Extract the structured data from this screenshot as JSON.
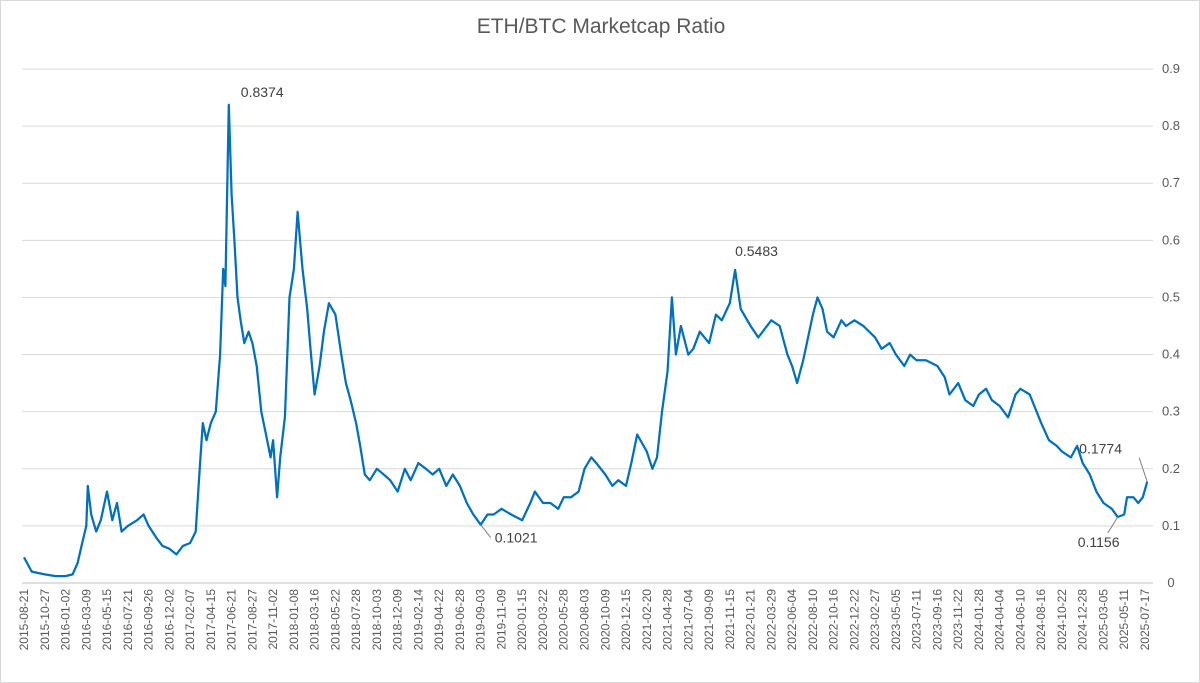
{
  "chart_data": {
    "type": "line",
    "title": "ETH/BTC Marketcap Ratio",
    "xlabel": "",
    "ylabel": "",
    "ylim": [
      0,
      0.9
    ],
    "y_ticks": [
      "0",
      "0.1",
      "0.2",
      "0.3",
      "0.4",
      "0.5",
      "0.6",
      "0.7",
      "0.8",
      "0.9"
    ],
    "y_axis_position": "right",
    "grid": "horizontal",
    "legend": "none",
    "x_tick_labels": [
      "2015-08-21",
      "2015-10-27",
      "2016-01-02",
      "2016-03-09",
      "2016-05-15",
      "2016-07-21",
      "2016-09-26",
      "2016-12-02",
      "2017-02-07",
      "2017-04-15",
      "2017-06-21",
      "2017-08-27",
      "2017-11-02",
      "2018-01-08",
      "2018-03-16",
      "2018-05-22",
      "2018-07-28",
      "2018-10-03",
      "2018-12-09",
      "2019-02-14",
      "2019-04-22",
      "2019-06-28",
      "2019-09-03",
      "2019-11-09",
      "2020-01-15",
      "2020-03-22",
      "2020-05-28",
      "2020-08-03",
      "2020-10-09",
      "2020-12-15",
      "2021-02-20",
      "2021-04-28",
      "2021-07-04",
      "2021-09-09",
      "2021-11-15",
      "2022-01-21",
      "2022-03-29",
      "2022-06-04",
      "2022-08-10",
      "2022-10-16",
      "2022-12-22",
      "2023-02-27",
      "2023-05-05",
      "2023-07-11",
      "2023-09-16",
      "2023-11-22",
      "2024-01-28",
      "2024-04-04",
      "2024-06-10",
      "2024-08-16",
      "2024-10-22",
      "2024-12-28",
      "2025-03-05",
      "2025-05-11",
      "2025-07-17"
    ],
    "series": [
      {
        "color": "#0070c0",
        "points": [
          {
            "x": "2015-08-21",
            "y": 0.045
          },
          {
            "x": "2015-09-15",
            "y": 0.02
          },
          {
            "x": "2015-10-27",
            "y": 0.015
          },
          {
            "x": "2015-12-01",
            "y": 0.012
          },
          {
            "x": "2016-01-02",
            "y": 0.012
          },
          {
            "x": "2016-01-25",
            "y": 0.015
          },
          {
            "x": "2016-02-10",
            "y": 0.035
          },
          {
            "x": "2016-02-25",
            "y": 0.07
          },
          {
            "x": "2016-03-09",
            "y": 0.1
          },
          {
            "x": "2016-03-14",
            "y": 0.17
          },
          {
            "x": "2016-03-25",
            "y": 0.12
          },
          {
            "x": "2016-04-10",
            "y": 0.09
          },
          {
            "x": "2016-04-25",
            "y": 0.11
          },
          {
            "x": "2016-05-15",
            "y": 0.16
          },
          {
            "x": "2016-06-01",
            "y": 0.11
          },
          {
            "x": "2016-06-16",
            "y": 0.14
          },
          {
            "x": "2016-07-01",
            "y": 0.09
          },
          {
            "x": "2016-07-21",
            "y": 0.1
          },
          {
            "x": "2016-08-20",
            "y": 0.11
          },
          {
            "x": "2016-09-10",
            "y": 0.12
          },
          {
            "x": "2016-09-26",
            "y": 0.1
          },
          {
            "x": "2016-10-20",
            "y": 0.08
          },
          {
            "x": "2016-11-10",
            "y": 0.065
          },
          {
            "x": "2016-12-02",
            "y": 0.06
          },
          {
            "x": "2016-12-25",
            "y": 0.05
          },
          {
            "x": "2017-01-15",
            "y": 0.065
          },
          {
            "x": "2017-02-07",
            "y": 0.07
          },
          {
            "x": "2017-02-25",
            "y": 0.09
          },
          {
            "x": "2017-03-10",
            "y": 0.2
          },
          {
            "x": "2017-03-20",
            "y": 0.28
          },
          {
            "x": "2017-04-01",
            "y": 0.25
          },
          {
            "x": "2017-04-15",
            "y": 0.28
          },
          {
            "x": "2017-05-01",
            "y": 0.3
          },
          {
            "x": "2017-05-15",
            "y": 0.4
          },
          {
            "x": "2017-05-25",
            "y": 0.55
          },
          {
            "x": "2017-06-01",
            "y": 0.52
          },
          {
            "x": "2017-06-12",
            "y": 0.8374
          },
          {
            "x": "2017-06-21",
            "y": 0.68
          },
          {
            "x": "2017-06-30",
            "y": 0.6
          },
          {
            "x": "2017-07-10",
            "y": 0.5
          },
          {
            "x": "2017-07-20",
            "y": 0.46
          },
          {
            "x": "2017-08-01",
            "y": 0.42
          },
          {
            "x": "2017-08-15",
            "y": 0.44
          },
          {
            "x": "2017-08-27",
            "y": 0.42
          },
          {
            "x": "2017-09-10",
            "y": 0.38
          },
          {
            "x": "2017-09-25",
            "y": 0.3
          },
          {
            "x": "2017-10-10",
            "y": 0.26
          },
          {
            "x": "2017-10-25",
            "y": 0.22
          },
          {
            "x": "2017-11-02",
            "y": 0.25
          },
          {
            "x": "2017-11-15",
            "y": 0.15
          },
          {
            "x": "2017-11-25",
            "y": 0.22
          },
          {
            "x": "2017-12-10",
            "y": 0.29
          },
          {
            "x": "2017-12-25",
            "y": 0.5
          },
          {
            "x": "2018-01-08",
            "y": 0.55
          },
          {
            "x": "2018-01-20",
            "y": 0.65
          },
          {
            "x": "2018-02-05",
            "y": 0.55
          },
          {
            "x": "2018-02-20",
            "y": 0.48
          },
          {
            "x": "2018-03-01",
            "y": 0.42
          },
          {
            "x": "2018-03-16",
            "y": 0.33
          },
          {
            "x": "2018-04-01",
            "y": 0.38
          },
          {
            "x": "2018-04-15",
            "y": 0.44
          },
          {
            "x": "2018-05-01",
            "y": 0.49
          },
          {
            "x": "2018-05-22",
            "y": 0.47
          },
          {
            "x": "2018-06-10",
            "y": 0.4
          },
          {
            "x": "2018-06-25",
            "y": 0.35
          },
          {
            "x": "2018-07-10",
            "y": 0.32
          },
          {
            "x": "2018-07-28",
            "y": 0.28
          },
          {
            "x": "2018-08-10",
            "y": 0.24
          },
          {
            "x": "2018-08-25",
            "y": 0.19
          },
          {
            "x": "2018-09-10",
            "y": 0.18
          },
          {
            "x": "2018-10-03",
            "y": 0.2
          },
          {
            "x": "2018-10-25",
            "y": 0.19
          },
          {
            "x": "2018-11-15",
            "y": 0.18
          },
          {
            "x": "2018-12-09",
            "y": 0.16
          },
          {
            "x": "2019-01-01",
            "y": 0.2
          },
          {
            "x": "2019-01-20",
            "y": 0.18
          },
          {
            "x": "2019-02-14",
            "y": 0.21
          },
          {
            "x": "2019-03-10",
            "y": 0.2
          },
          {
            "x": "2019-04-01",
            "y": 0.19
          },
          {
            "x": "2019-04-22",
            "y": 0.2
          },
          {
            "x": "2019-05-15",
            "y": 0.17
          },
          {
            "x": "2019-06-05",
            "y": 0.19
          },
          {
            "x": "2019-06-28",
            "y": 0.17
          },
          {
            "x": "2019-07-20",
            "y": 0.14
          },
          {
            "x": "2019-08-10",
            "y": 0.12
          },
          {
            "x": "2019-09-03",
            "y": 0.1021
          },
          {
            "x": "2019-09-25",
            "y": 0.12
          },
          {
            "x": "2019-10-15",
            "y": 0.12
          },
          {
            "x": "2019-11-09",
            "y": 0.13
          },
          {
            "x": "2019-12-10",
            "y": 0.12
          },
          {
            "x": "2020-01-15",
            "y": 0.11
          },
          {
            "x": "2020-02-10",
            "y": 0.14
          },
          {
            "x": "2020-02-25",
            "y": 0.16
          },
          {
            "x": "2020-03-22",
            "y": 0.14
          },
          {
            "x": "2020-04-15",
            "y": 0.14
          },
          {
            "x": "2020-05-10",
            "y": 0.13
          },
          {
            "x": "2020-05-28",
            "y": 0.15
          },
          {
            "x": "2020-06-20",
            "y": 0.15
          },
          {
            "x": "2020-07-15",
            "y": 0.16
          },
          {
            "x": "2020-08-03",
            "y": 0.2
          },
          {
            "x": "2020-08-25",
            "y": 0.22
          },
          {
            "x": "2020-09-10",
            "y": 0.21
          },
          {
            "x": "2020-10-09",
            "y": 0.19
          },
          {
            "x": "2020-11-01",
            "y": 0.17
          },
          {
            "x": "2020-11-20",
            "y": 0.18
          },
          {
            "x": "2020-12-15",
            "y": 0.17
          },
          {
            "x": "2021-01-01",
            "y": 0.21
          },
          {
            "x": "2021-01-20",
            "y": 0.26
          },
          {
            "x": "2021-02-20",
            "y": 0.23
          },
          {
            "x": "2021-03-10",
            "y": 0.2
          },
          {
            "x": "2021-03-25",
            "y": 0.22
          },
          {
            "x": "2021-04-10",
            "y": 0.3
          },
          {
            "x": "2021-04-28",
            "y": 0.37
          },
          {
            "x": "2021-05-12",
            "y": 0.5
          },
          {
            "x": "2021-05-25",
            "y": 0.4
          },
          {
            "x": "2021-06-10",
            "y": 0.45
          },
          {
            "x": "2021-07-04",
            "y": 0.4
          },
          {
            "x": "2021-07-20",
            "y": 0.41
          },
          {
            "x": "2021-08-10",
            "y": 0.44
          },
          {
            "x": "2021-09-09",
            "y": 0.42
          },
          {
            "x": "2021-10-01",
            "y": 0.47
          },
          {
            "x": "2021-10-20",
            "y": 0.46
          },
          {
            "x": "2021-11-15",
            "y": 0.49
          },
          {
            "x": "2021-12-02",
            "y": 0.5483
          },
          {
            "x": "2021-12-20",
            "y": 0.48
          },
          {
            "x": "2022-01-21",
            "y": 0.45
          },
          {
            "x": "2022-02-15",
            "y": 0.43
          },
          {
            "x": "2022-03-29",
            "y": 0.46
          },
          {
            "x": "2022-04-25",
            "y": 0.45
          },
          {
            "x": "2022-05-20",
            "y": 0.4
          },
          {
            "x": "2022-06-04",
            "y": 0.38
          },
          {
            "x": "2022-06-20",
            "y": 0.35
          },
          {
            "x": "2022-07-10",
            "y": 0.39
          },
          {
            "x": "2022-08-10",
            "y": 0.47
          },
          {
            "x": "2022-08-25",
            "y": 0.5
          },
          {
            "x": "2022-09-10",
            "y": 0.48
          },
          {
            "x": "2022-09-25",
            "y": 0.44
          },
          {
            "x": "2022-10-16",
            "y": 0.43
          },
          {
            "x": "2022-11-10",
            "y": 0.46
          },
          {
            "x": "2022-11-25",
            "y": 0.45
          },
          {
            "x": "2022-12-22",
            "y": 0.46
          },
          {
            "x": "2023-01-20",
            "y": 0.45
          },
          {
            "x": "2023-02-27",
            "y": 0.43
          },
          {
            "x": "2023-03-20",
            "y": 0.41
          },
          {
            "x": "2023-04-15",
            "y": 0.42
          },
          {
            "x": "2023-05-05",
            "y": 0.4
          },
          {
            "x": "2023-06-01",
            "y": 0.38
          },
          {
            "x": "2023-06-20",
            "y": 0.4
          },
          {
            "x": "2023-07-11",
            "y": 0.39
          },
          {
            "x": "2023-08-10",
            "y": 0.39
          },
          {
            "x": "2023-09-16",
            "y": 0.38
          },
          {
            "x": "2023-10-10",
            "y": 0.36
          },
          {
            "x": "2023-10-25",
            "y": 0.33
          },
          {
            "x": "2023-11-22",
            "y": 0.35
          },
          {
            "x": "2023-12-15",
            "y": 0.32
          },
          {
            "x": "2024-01-10",
            "y": 0.31
          },
          {
            "x": "2024-01-28",
            "y": 0.33
          },
          {
            "x": "2024-02-20",
            "y": 0.34
          },
          {
            "x": "2024-03-10",
            "y": 0.32
          },
          {
            "x": "2024-04-04",
            "y": 0.31
          },
          {
            "x": "2024-05-01",
            "y": 0.29
          },
          {
            "x": "2024-05-25",
            "y": 0.33
          },
          {
            "x": "2024-06-10",
            "y": 0.34
          },
          {
            "x": "2024-07-10",
            "y": 0.33
          },
          {
            "x": "2024-08-16",
            "y": 0.28
          },
          {
            "x": "2024-09-10",
            "y": 0.25
          },
          {
            "x": "2024-10-05",
            "y": 0.24
          },
          {
            "x": "2024-10-22",
            "y": 0.23
          },
          {
            "x": "2024-11-20",
            "y": 0.22
          },
          {
            "x": "2024-12-10",
            "y": 0.24
          },
          {
            "x": "2024-12-28",
            "y": 0.21
          },
          {
            "x": "2025-01-20",
            "y": 0.19
          },
          {
            "x": "2025-02-10",
            "y": 0.16
          },
          {
            "x": "2025-03-05",
            "y": 0.14
          },
          {
            "x": "2025-04-01",
            "y": 0.13
          },
          {
            "x": "2025-04-20",
            "y": 0.1156
          },
          {
            "x": "2025-05-11",
            "y": 0.12
          },
          {
            "x": "2025-05-20",
            "y": 0.15
          },
          {
            "x": "2025-06-10",
            "y": 0.15
          },
          {
            "x": "2025-06-25",
            "y": 0.14
          },
          {
            "x": "2025-07-10",
            "y": 0.15
          },
          {
            "x": "2025-07-24",
            "y": 0.1774
          }
        ]
      }
    ],
    "annotations": [
      {
        "text": "0.8374",
        "x": "2017-06-12",
        "y": 0.8374,
        "leader": false
      },
      {
        "text": "0.5483",
        "x": "2021-12-02",
        "y": 0.5483,
        "leader": false
      },
      {
        "text": "0.1021",
        "x": "2019-09-03",
        "y": 0.1021,
        "leader": true
      },
      {
        "text": "0.1156",
        "x": "2025-04-20",
        "y": 0.1156,
        "leader": true
      },
      {
        "text": "0.1774",
        "x": "2025-07-24",
        "y": 0.1774,
        "leader": true
      }
    ]
  }
}
